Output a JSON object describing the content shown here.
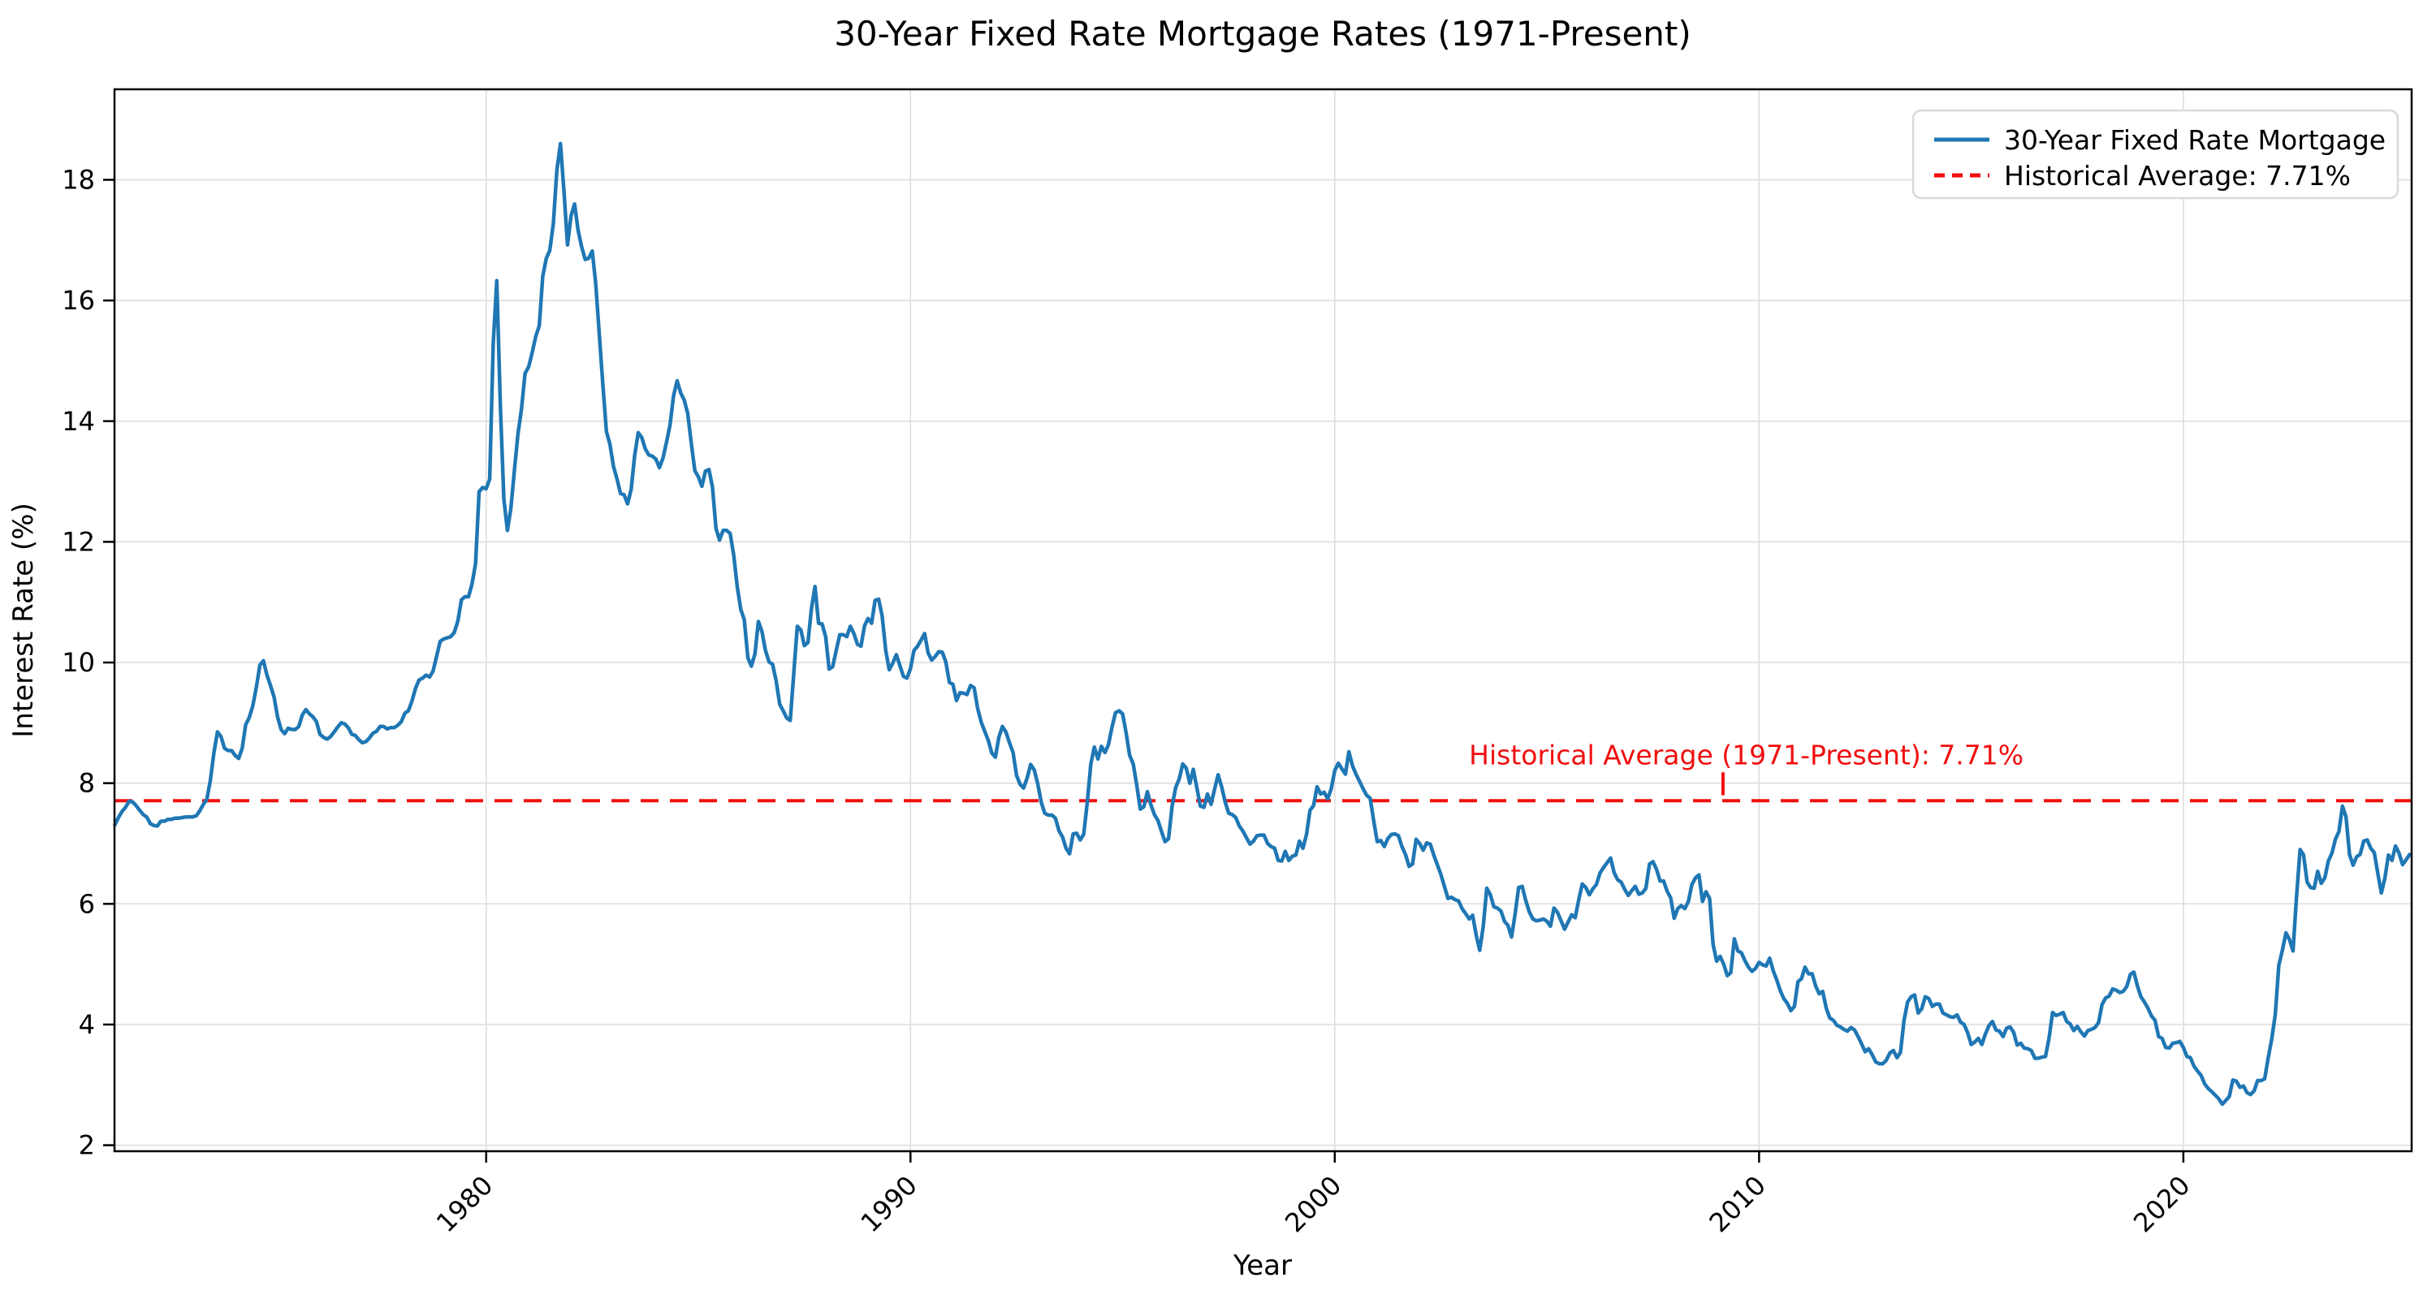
{
  "chart": {
    "title": "30-Year Fixed Rate Mortgage Rates (1971-Present)",
    "xlabel": "Year",
    "ylabel": "Interest Rate (%)",
    "annotation_text": "Historical Average (1971-Present): 7.71%",
    "legend": {
      "series_label": "30-Year Fixed Rate Mortgage",
      "average_label": "Historical Average: 7.71%"
    }
  },
  "chart_data": {
    "type": "line",
    "title": "30-Year Fixed Rate Mortgage Rates (1971-Present)",
    "xlabel": "Year",
    "ylabel": "Interest Rate (%)",
    "xlim": [
      1971.24,
      2025.38
    ],
    "ylim": [
      1.9,
      19.5
    ],
    "xticks": [
      1980,
      1990,
      2000,
      2010,
      2020
    ],
    "yticks": [
      2,
      4,
      6,
      8,
      10,
      12,
      14,
      16,
      18
    ],
    "grid": true,
    "grid_color": "#dcdcdc",
    "legend_position": "upper right",
    "historical_average": 7.71,
    "annotation": {
      "text": "Historical Average (1971-Present): 7.71%",
      "color": "#f10e0e",
      "text_x": 2009.7,
      "text_y": 8.46,
      "pointer_x": 2009.15,
      "pointer_y1": 8.18,
      "pointer_y2": 7.8
    },
    "series": [
      {
        "name": "30-Year Fixed Rate Mortgage",
        "color": "#1f77b4",
        "style": "solid",
        "x_start": 1971.25,
        "x_step": 0.0833333,
        "values": [
          7.31,
          7.43,
          7.53,
          7.6,
          7.7,
          7.69,
          7.63,
          7.55,
          7.48,
          7.44,
          7.33,
          7.3,
          7.29,
          7.37,
          7.37,
          7.4,
          7.4,
          7.42,
          7.42,
          7.43,
          7.44,
          7.44,
          7.44,
          7.46,
          7.54,
          7.65,
          7.73,
          8.05,
          8.5,
          8.85,
          8.77,
          8.58,
          8.54,
          8.54,
          8.46,
          8.41,
          8.58,
          8.97,
          9.09,
          9.28,
          9.59,
          9.96,
          10.03,
          9.79,
          9.62,
          9.43,
          9.1,
          8.89,
          8.82,
          8.91,
          8.89,
          8.89,
          8.94,
          9.13,
          9.22,
          9.15,
          9.1,
          9.02,
          8.81,
          8.76,
          8.73,
          8.77,
          8.85,
          8.93,
          9.0,
          8.98,
          8.92,
          8.81,
          8.79,
          8.72,
          8.67,
          8.69,
          8.75,
          8.83,
          8.86,
          8.94,
          8.94,
          8.9,
          8.92,
          8.92,
          8.96,
          9.02,
          9.16,
          9.2,
          9.36,
          9.57,
          9.71,
          9.74,
          9.79,
          9.76,
          9.86,
          10.11,
          10.35,
          10.39,
          10.41,
          10.43,
          10.5,
          10.69,
          11.04,
          11.09,
          11.09,
          11.3,
          11.64,
          12.83,
          12.9,
          12.88,
          13.04,
          15.28,
          16.33,
          14.26,
          12.71,
          12.19,
          12.56,
          13.2,
          13.79,
          14.21,
          14.79,
          14.9,
          15.13,
          15.4,
          15.58,
          16.4,
          16.7,
          16.83,
          17.28,
          18.16,
          18.6,
          17.82,
          16.92,
          17.4,
          17.6,
          17.16,
          16.89,
          16.68,
          16.7,
          16.82,
          16.27,
          15.43,
          14.61,
          13.83,
          13.62,
          13.25,
          13.04,
          12.8,
          12.78,
          12.63,
          12.87,
          13.43,
          13.81,
          13.73,
          13.54,
          13.44,
          13.42,
          13.37,
          13.23,
          13.39,
          13.65,
          13.94,
          14.42,
          14.67,
          14.47,
          14.35,
          14.13,
          13.64,
          13.18,
          13.08,
          12.92,
          13.17,
          13.2,
          12.91,
          12.22,
          12.03,
          12.19,
          12.19,
          12.14,
          11.78,
          11.26,
          10.88,
          10.71,
          10.08,
          9.94,
          10.14,
          10.68,
          10.51,
          10.2,
          10.01,
          9.97,
          9.7,
          9.31,
          9.2,
          9.08,
          9.04,
          9.83,
          10.6,
          10.54,
          10.28,
          10.33,
          10.89,
          11.26,
          10.65,
          10.64,
          10.43,
          9.89,
          9.93,
          10.2,
          10.46,
          10.46,
          10.43,
          10.6,
          10.48,
          10.3,
          10.27,
          10.61,
          10.73,
          10.65,
          11.03,
          11.05,
          10.77,
          10.2,
          9.88,
          9.99,
          10.13,
          9.95,
          9.77,
          9.74,
          9.9,
          10.2,
          10.27,
          10.37,
          10.48,
          10.16,
          10.04,
          10.1,
          10.18,
          10.17,
          10.01,
          9.67,
          9.64,
          9.37,
          9.5,
          9.49,
          9.47,
          9.62,
          9.58,
          9.24,
          9.01,
          8.86,
          8.71,
          8.5,
          8.43,
          8.76,
          8.94,
          8.85,
          8.67,
          8.51,
          8.13,
          7.98,
          7.92,
          8.09,
          8.31,
          8.22,
          7.99,
          7.68,
          7.5,
          7.47,
          7.47,
          7.42,
          7.21,
          7.11,
          6.92,
          6.83,
          7.16,
          7.17,
          7.06,
          7.15,
          7.68,
          8.32,
          8.6,
          8.4,
          8.61,
          8.51,
          8.64,
          8.93,
          9.17,
          9.2,
          9.15,
          8.83,
          8.46,
          8.32,
          7.96,
          7.57,
          7.61,
          7.86,
          7.64,
          7.48,
          7.38,
          7.2,
          7.03,
          7.08,
          7.62,
          7.93,
          8.07,
          8.32,
          8.25,
          8.0,
          8.23,
          7.92,
          7.62,
          7.6,
          7.82,
          7.65,
          7.9,
          8.14,
          7.94,
          7.69,
          7.5,
          7.48,
          7.43,
          7.29,
          7.21,
          7.1,
          6.99,
          7.04,
          7.13,
          7.14,
          7.14,
          7.0,
          6.95,
          6.92,
          6.72,
          6.71,
          6.87,
          6.72,
          6.79,
          6.81,
          7.04,
          6.92,
          7.15,
          7.55,
          7.63,
          7.94,
          7.82,
          7.85,
          7.74,
          7.91,
          8.21,
          8.33,
          8.24,
          8.15,
          8.52,
          8.29,
          8.15,
          8.03,
          7.91,
          7.8,
          7.75,
          7.38,
          7.03,
          7.05,
          6.95,
          7.08,
          7.15,
          7.16,
          7.13,
          6.95,
          6.82,
          6.62,
          6.66,
          7.07,
          7.0,
          6.89,
          7.01,
          6.99,
          6.81,
          6.65,
          6.49,
          6.29,
          6.09,
          6.11,
          6.07,
          6.05,
          5.92,
          5.84,
          5.75,
          5.81,
          5.48,
          5.23,
          5.63,
          6.26,
          6.15,
          5.95,
          5.93,
          5.88,
          5.71,
          5.64,
          5.45,
          5.83,
          6.27,
          6.29,
          6.06,
          5.87,
          5.75,
          5.72,
          5.73,
          5.75,
          5.71,
          5.63,
          5.93,
          5.86,
          5.72,
          5.58,
          5.7,
          5.82,
          5.77,
          6.07,
          6.33,
          6.27,
          6.15,
          6.25,
          6.32,
          6.51,
          6.6,
          6.68,
          6.76,
          6.52,
          6.4,
          6.36,
          6.24,
          6.14,
          6.22,
          6.29,
          6.16,
          6.18,
          6.26,
          6.66,
          6.7,
          6.57,
          6.38,
          6.38,
          6.21,
          6.1,
          5.76,
          5.92,
          5.97,
          5.92,
          6.04,
          6.32,
          6.43,
          6.48,
          6.04,
          6.2,
          6.09,
          5.33,
          5.05,
          5.13,
          5.0,
          4.81,
          4.86,
          5.42,
          5.22,
          5.19,
          5.06,
          4.95,
          4.88,
          4.93,
          5.03,
          4.99,
          4.97,
          5.1,
          4.89,
          4.74,
          4.56,
          4.43,
          4.35,
          4.23,
          4.3,
          4.71,
          4.76,
          4.95,
          4.84,
          4.84,
          4.64,
          4.51,
          4.55,
          4.27,
          4.11,
          4.07,
          3.99,
          3.96,
          3.92,
          3.89,
          3.95,
          3.91,
          3.8,
          3.68,
          3.55,
          3.6,
          3.5,
          3.38,
          3.35,
          3.35,
          3.41,
          3.53,
          3.57,
          3.45,
          3.54,
          4.07,
          4.37,
          4.46,
          4.49,
          4.19,
          4.26,
          4.46,
          4.43,
          4.3,
          4.34,
          4.34,
          4.19,
          4.16,
          4.13,
          4.12,
          4.16,
          4.04,
          4.0,
          3.86,
          3.67,
          3.71,
          3.77,
          3.67,
          3.84,
          3.98,
          4.05,
          3.91,
          3.89,
          3.8,
          3.94,
          3.96,
          3.87,
          3.66,
          3.69,
          3.61,
          3.6,
          3.57,
          3.44,
          3.44,
          3.46,
          3.47,
          3.77,
          4.2,
          4.15,
          4.17,
          4.2,
          4.05,
          4.01,
          3.9,
          3.97,
          3.88,
          3.81,
          3.9,
          3.92,
          3.95,
          4.03,
          4.33,
          4.44,
          4.47,
          4.59,
          4.57,
          4.53,
          4.55,
          4.63,
          4.83,
          4.87,
          4.64,
          4.46,
          4.37,
          4.27,
          4.14,
          4.07,
          3.8,
          3.77,
          3.62,
          3.61,
          3.69,
          3.7,
          3.72,
          3.62,
          3.47,
          3.45,
          3.31,
          3.23,
          3.16,
          3.02,
          2.94,
          2.89,
          2.83,
          2.77,
          2.68,
          2.74,
          2.81,
          3.08,
          3.06,
          2.96,
          2.98,
          2.87,
          2.84,
          2.9,
          3.07,
          3.07,
          3.1,
          3.45,
          3.76,
          4.17,
          4.98,
          5.23,
          5.52,
          5.41,
          5.22,
          6.11,
          6.9,
          6.81,
          6.36,
          6.27,
          6.26,
          6.54,
          6.34,
          6.43,
          6.71,
          6.84,
          7.07,
          7.2,
          7.62,
          7.44,
          6.82,
          6.64,
          6.78,
          6.82,
          7.04,
          7.06,
          6.92,
          6.85,
          6.5,
          6.18,
          6.43,
          6.81,
          6.72,
          6.96,
          6.84,
          6.65,
          6.73,
          6.82
        ]
      },
      {
        "name": "Historical Average: 7.71%",
        "color": "#f10e0e",
        "style": "dashed",
        "y": 7.71
      }
    ]
  }
}
